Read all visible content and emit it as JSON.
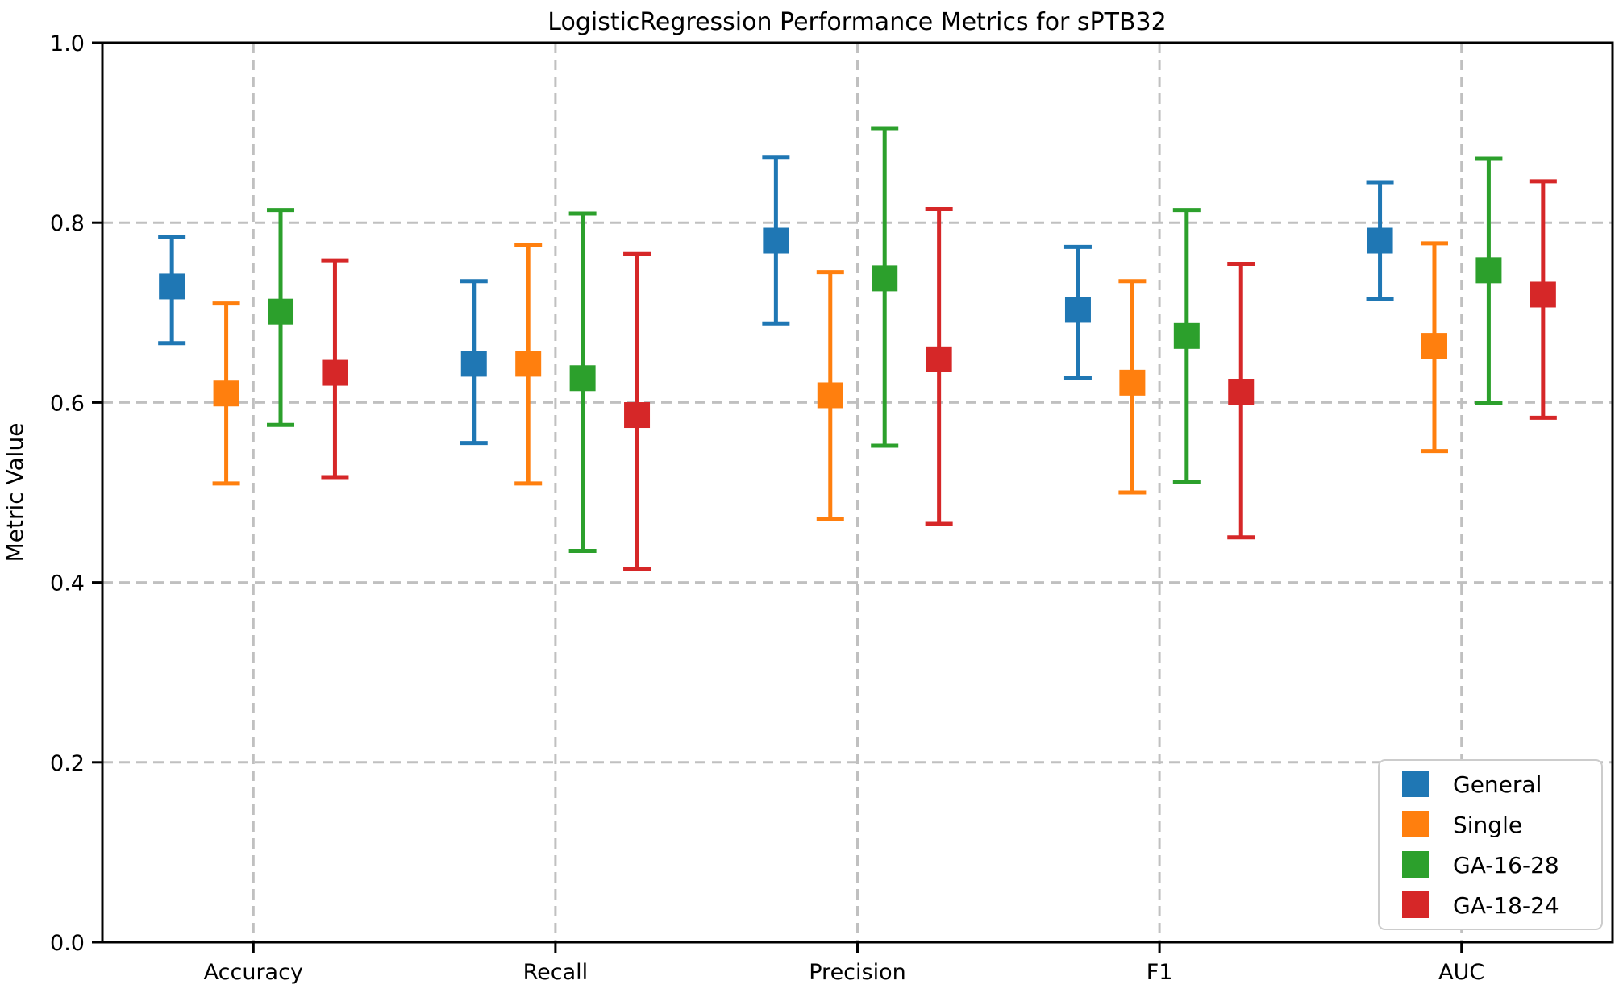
{
  "chart_data": {
    "type": "errorbar",
    "title": "LogisticRegression Performance Metrics for sPTB32",
    "xlabel": "",
    "ylabel": "Metric Value",
    "categories": [
      "Accuracy",
      "Recall",
      "Precision",
      "F1",
      "AUC"
    ],
    "ylim": [
      0.0,
      1.0
    ],
    "yticks": [
      0.0,
      0.2,
      0.4,
      0.6,
      0.8,
      1.0
    ],
    "ytick_labels": [
      "0.0",
      "0.2",
      "0.4",
      "0.6",
      "0.8",
      "1.0"
    ],
    "grid": "dashed horizontal and vertical gridlines",
    "grid_color": "#c0c0c0",
    "legend_position": "lower right",
    "marker": "square",
    "series": [
      {
        "name": "General",
        "color": "#1f77b4",
        "offset": -0.27,
        "values": [
          0.729,
          0.643,
          0.78,
          0.703,
          0.78
        ],
        "err_lower": [
          0.666,
          0.555,
          0.688,
          0.627,
          0.715
        ],
        "err_upper": [
          0.784,
          0.735,
          0.873,
          0.773,
          0.845
        ]
      },
      {
        "name": "Single",
        "color": "#ff7f0e",
        "offset": -0.09,
        "values": [
          0.61,
          0.643,
          0.608,
          0.622,
          0.663
        ],
        "err_lower": [
          0.51,
          0.51,
          0.47,
          0.5,
          0.546
        ],
        "err_upper": [
          0.71,
          0.775,
          0.745,
          0.735,
          0.777
        ]
      },
      {
        "name": "GA-16-28",
        "color": "#2ca02c",
        "offset": 0.09,
        "values": [
          0.701,
          0.627,
          0.738,
          0.674,
          0.747
        ],
        "err_lower": [
          0.575,
          0.435,
          0.552,
          0.512,
          0.599
        ],
        "err_upper": [
          0.814,
          0.81,
          0.905,
          0.814,
          0.871
        ]
      },
      {
        "name": "GA-18-24",
        "color": "#d62728",
        "offset": 0.27,
        "values": [
          0.633,
          0.586,
          0.648,
          0.612,
          0.72
        ],
        "err_lower": [
          0.517,
          0.415,
          0.465,
          0.45,
          0.583
        ],
        "err_upper": [
          0.758,
          0.765,
          0.815,
          0.754,
          0.846
        ]
      }
    ]
  }
}
